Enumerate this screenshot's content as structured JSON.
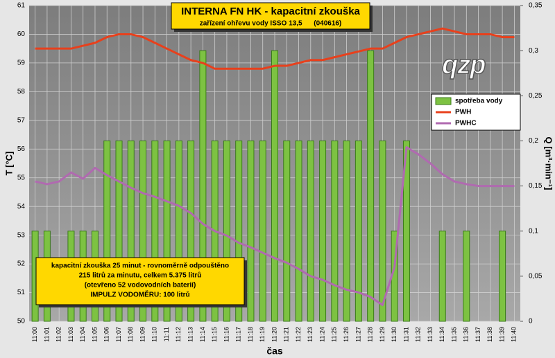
{
  "chart_data": {
    "type": "bar",
    "title": "INTERNA FN HK - kapacitní zkouška",
    "subtitle": "zařízení ohřevu vody ISSO 13,5      (040616)",
    "note": [
      "kapacitní zkouška 25 minut - rovnoměrně odpouštěno",
      "215 litrů za minutu, celkem 5.375 litrů",
      "(otevřeno 52 vodovodních baterií)",
      "IMPULZ VODOMĚRU: 100 litrů"
    ],
    "logo": "qzp",
    "xlabel": "čas",
    "ylabel": "T [°C]",
    "y2label": "Q [m³·min⁻¹]",
    "categories": [
      "11:00",
      "11:01",
      "11:02",
      "11:03",
      "11:04",
      "11:05",
      "11:06",
      "11:07",
      "11:08",
      "11:09",
      "11:10",
      "11:11",
      "11:12",
      "11:13",
      "11:14",
      "11:15",
      "11:16",
      "11:17",
      "11:18",
      "11:19",
      "11:20",
      "11:21",
      "11:22",
      "11:23",
      "11:24",
      "11:25",
      "11:26",
      "11:27",
      "11:28",
      "11:29",
      "11:30",
      "11:31",
      "11:32",
      "11:33",
      "11:34",
      "11:35",
      "11:36",
      "11:37",
      "11:38",
      "11:39",
      "11:40"
    ],
    "series": [
      {
        "name": "spotřeba vody",
        "type": "bar",
        "axis": "y2",
        "color": "#7dc242",
        "values": [
          0.1,
          0.1,
          0,
          0.1,
          0.1,
          0.1,
          0.2,
          0.2,
          0.2,
          0.2,
          0.2,
          0.2,
          0.2,
          0.2,
          0.3,
          0.2,
          0.2,
          0.2,
          0.2,
          0.2,
          0.3,
          0.2,
          0.2,
          0.2,
          0.2,
          0.2,
          0.2,
          0.2,
          0.3,
          0.2,
          0.1,
          0.2,
          0,
          0,
          0.1,
          0,
          0.1,
          0,
          0,
          0.1,
          0
        ]
      },
      {
        "name": "PWH",
        "type": "line",
        "axis": "y",
        "color": "#e8401c",
        "values": [
          59.5,
          59.5,
          59.5,
          59.5,
          59.6,
          59.7,
          59.9,
          60.0,
          60.0,
          59.9,
          59.7,
          59.5,
          59.3,
          59.1,
          59.0,
          58.8,
          58.8,
          58.8,
          58.8,
          58.8,
          58.9,
          58.9,
          59.0,
          59.1,
          59.1,
          59.2,
          59.3,
          59.4,
          59.5,
          59.5,
          59.7,
          59.9,
          60.0,
          60.1,
          60.2,
          60.1,
          60.0,
          60.0,
          60.0,
          59.9,
          59.9
        ]
      },
      {
        "name": "PWHC",
        "type": "line",
        "axis": "y2",
        "color": "#b06ab0",
        "values": [
          0.155,
          0.152,
          0.155,
          0.165,
          0.158,
          0.17,
          0.162,
          0.155,
          0.148,
          0.142,
          0.138,
          0.133,
          0.128,
          0.12,
          0.108,
          0.1,
          0.095,
          0.087,
          0.082,
          0.076,
          0.07,
          0.065,
          0.058,
          0.05,
          0.046,
          0.04,
          0.035,
          0.032,
          0.027,
          0.018,
          0.06,
          0.193,
          0.185,
          0.175,
          0.163,
          0.155,
          0.152,
          0.15,
          0.15,
          0.15,
          0.15
        ]
      }
    ],
    "ylim": [
      50,
      61
    ],
    "yticks": [
      50,
      51,
      52,
      53,
      54,
      55,
      56,
      57,
      58,
      59,
      60,
      61
    ],
    "y2lim": [
      0,
      0.35
    ],
    "y2ticks": [
      0,
      {
        "value": 0.05,
        "label": "0,05"
      },
      {
        "value": 0.1,
        "label": "0,1"
      },
      {
        "value": 0.15,
        "label": "0,15"
      },
      {
        "value": 0.2,
        "label": "0,2"
      },
      {
        "value": 0.25,
        "label": "0,25"
      },
      {
        "value": 0.3,
        "label": "0,3"
      },
      {
        "value": 0.35,
        "label": "0,35"
      }
    ],
    "grid": true
  }
}
